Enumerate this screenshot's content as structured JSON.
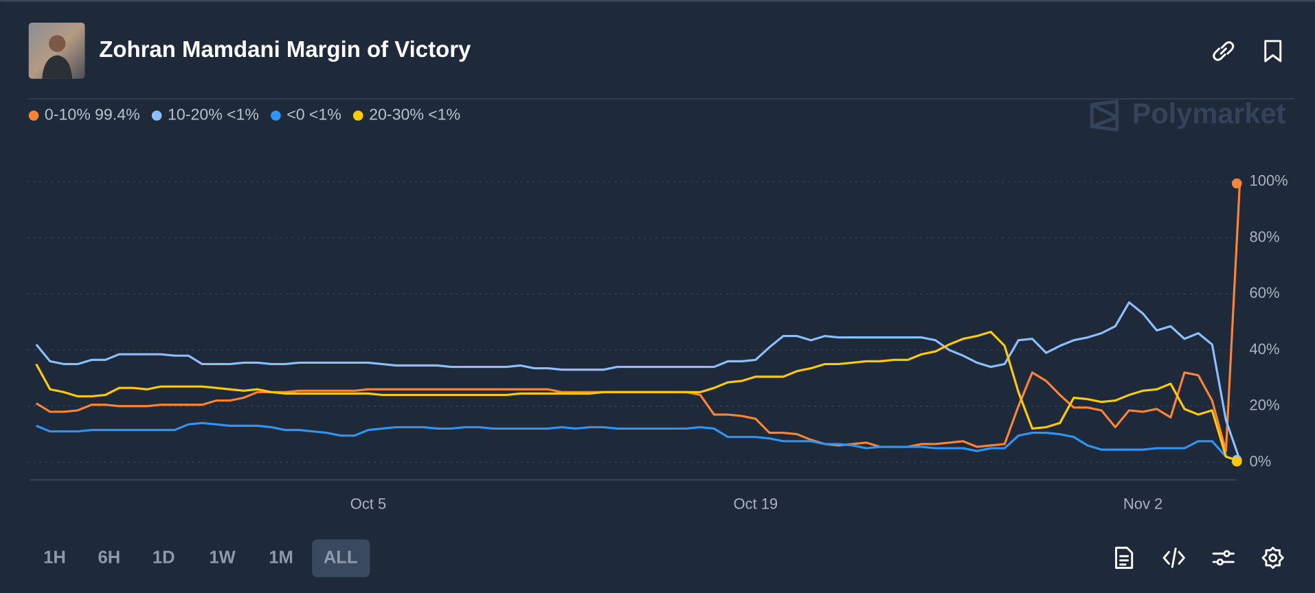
{
  "header": {
    "title": "Zohran Mamdani Margin of Victory"
  },
  "brand": "Polymarket",
  "range_buttons": [
    "1H",
    "6H",
    "1D",
    "1W",
    "1M",
    "ALL"
  ],
  "chart_data": {
    "type": "line",
    "categories": [
      null,
      null,
      null,
      null,
      null,
      null,
      null,
      null,
      null,
      null,
      null,
      null,
      null,
      null,
      null,
      null,
      null,
      null,
      null,
      null,
      null,
      null,
      null,
      null,
      "Oct 5",
      null,
      null,
      null,
      null,
      null,
      null,
      null,
      null,
      null,
      null,
      null,
      null,
      null,
      null,
      null,
      null,
      null,
      null,
      null,
      null,
      null,
      null,
      null,
      null,
      null,
      null,
      null,
      "Oct 19",
      null,
      null,
      null,
      null,
      null,
      null,
      null,
      null,
      null,
      null,
      null,
      null,
      null,
      null,
      null,
      null,
      null,
      null,
      null,
      null,
      null,
      null,
      null,
      null,
      null,
      null,
      null,
      "Nov 2",
      null,
      null,
      null,
      null,
      null,
      null,
      null
    ],
    "ylim": [
      -6.3,
      100
    ],
    "yticks": [
      {
        "value": 0,
        "label": "0%"
      },
      {
        "value": 20,
        "label": "20%"
      },
      {
        "value": 40,
        "label": "40%"
      },
      {
        "value": 60,
        "label": "60%"
      },
      {
        "value": 80,
        "label": "80%"
      },
      {
        "value": 100,
        "label": "100%"
      }
    ],
    "grid": true,
    "series": [
      {
        "name": "0-10%",
        "legend_value": "99.4%",
        "color": "#fb8437",
        "values": [
          21,
          18,
          18,
          18.5,
          20.5,
          20.5,
          20,
          20,
          20,
          20.5,
          20.5,
          20.5,
          20.5,
          22,
          22,
          23,
          25,
          25,
          25,
          25.5,
          25.5,
          25.5,
          25.5,
          25.5,
          26,
          26,
          26,
          26,
          26,
          26,
          26,
          26,
          26,
          26,
          26,
          26,
          26,
          26,
          25,
          25,
          25,
          25,
          25,
          25,
          25,
          25,
          25,
          25,
          24,
          17,
          17,
          16.5,
          15.5,
          10.5,
          10.5,
          10,
          8,
          6.5,
          6,
          6.5,
          7,
          5.5,
          5.5,
          5.5,
          6.5,
          6.5,
          7,
          7.5,
          5.5,
          6,
          6.5,
          20,
          32,
          29,
          24,
          19.5,
          19.5,
          18.5,
          12.5,
          18.5,
          18,
          19,
          16,
          32,
          31,
          22,
          4,
          99.4
        ]
      },
      {
        "name": "10-20%",
        "legend_value": "<1%",
        "color": "#8ac0ff",
        "values": [
          42,
          36,
          35,
          35,
          36.5,
          36.5,
          38.5,
          38.5,
          38.5,
          38.5,
          38,
          38,
          35,
          35,
          35,
          35.5,
          35.5,
          35,
          35,
          35.5,
          35.5,
          35.5,
          35.5,
          35.5,
          35.5,
          35,
          34.5,
          34.5,
          34.5,
          34.5,
          34,
          34,
          34,
          34,
          34,
          34.5,
          33.5,
          33.5,
          33,
          33,
          33,
          33,
          34,
          34,
          34,
          34,
          34,
          34,
          34,
          34,
          36,
          36,
          36.5,
          41,
          45,
          45,
          43.5,
          45,
          44.5,
          44.5,
          44.5,
          44.5,
          44.5,
          44.5,
          44.5,
          43.5,
          40,
          38,
          35.5,
          34,
          35,
          43.5,
          44,
          39,
          41.5,
          43.5,
          44.5,
          46,
          48.5,
          57,
          53,
          47,
          48.5,
          44,
          46,
          42,
          15,
          0.8
        ]
      },
      {
        "name": "<0",
        "legend_value": "<1%",
        "color": "#2d95f5",
        "values": [
          13,
          11,
          11,
          11,
          11.5,
          11.5,
          11.5,
          11.5,
          11.5,
          11.5,
          11.5,
          13.5,
          14,
          13.5,
          13,
          13,
          13,
          12.5,
          11.5,
          11.5,
          11,
          10.5,
          9.5,
          9.5,
          11.5,
          12,
          12.5,
          12.5,
          12.5,
          12,
          12,
          12.5,
          12.5,
          12,
          12,
          12,
          12,
          12,
          12.5,
          12,
          12.5,
          12.5,
          12,
          12,
          12,
          12,
          12,
          12,
          12.5,
          12,
          9,
          9,
          9,
          8.5,
          7.5,
          7.5,
          7.5,
          6.5,
          6.5,
          6,
          5,
          5.5,
          5.5,
          5.5,
          5.5,
          5,
          5,
          5,
          4,
          5,
          5,
          9.5,
          10.5,
          10.5,
          10,
          9,
          6,
          4.5,
          4.5,
          4.5,
          4.5,
          5,
          5,
          5,
          7.5,
          7.5,
          2,
          0.5
        ]
      },
      {
        "name": "20-30%",
        "legend_value": "<1%",
        "color": "#ffcb05",
        "values": [
          35,
          26,
          25,
          23.5,
          23.5,
          24,
          26.5,
          26.5,
          26,
          27,
          27,
          27,
          27,
          26.5,
          26,
          25.5,
          26,
          25,
          24.5,
          24.5,
          24.5,
          24.5,
          24.5,
          24.5,
          24.5,
          24,
          24,
          24,
          24,
          24,
          24,
          24,
          24,
          24,
          24,
          24.5,
          24.5,
          24.5,
          24.5,
          24.5,
          24.5,
          25,
          25,
          25,
          25,
          25,
          25,
          25,
          25,
          26.5,
          28.5,
          29,
          30.5,
          30.5,
          30.5,
          32.5,
          33.5,
          35,
          35,
          35.5,
          36,
          36,
          36.5,
          36.5,
          38.5,
          39.5,
          42,
          44,
          45,
          46.5,
          41.5,
          25,
          12,
          12.5,
          14,
          23,
          22.5,
          21.5,
          22,
          24,
          25.5,
          26,
          28,
          19,
          17,
          18.5,
          2,
          0.3
        ]
      }
    ]
  }
}
